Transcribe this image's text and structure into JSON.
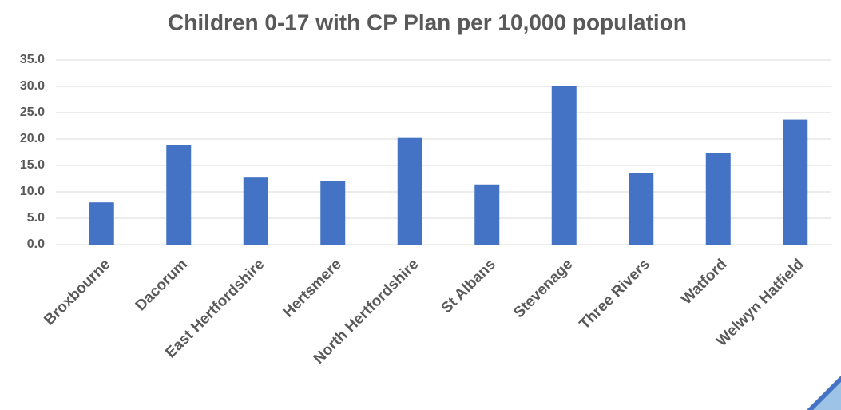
{
  "chart_data": {
    "type": "bar",
    "title": "Children 0-17 with CP Plan per 10,000 population",
    "categories": [
      "Broxbourne",
      "Dacorum",
      "East Hertfordshire",
      "Hertsmere",
      "North Hertfordshire",
      "St Albans",
      "Stevenage",
      "Three Rivers",
      "Watford",
      "Welwyn Hatfield"
    ],
    "values": [
      8.0,
      18.9,
      12.7,
      12.0,
      20.2,
      11.4,
      30.1,
      13.6,
      17.3,
      23.7
    ],
    "color": "#4472c4",
    "ylim": [
      0,
      35
    ],
    "yticks": [
      {
        "value": 0,
        "label": "0.0"
      },
      {
        "value": 5,
        "label": "5.0"
      },
      {
        "value": 10,
        "label": "10.0"
      },
      {
        "value": 15,
        "label": "15.0"
      },
      {
        "value": 20,
        "label": "20.0"
      },
      {
        "value": 25,
        "label": "25.0"
      },
      {
        "value": 30,
        "label": "30.0"
      },
      {
        "value": 35,
        "label": "35.0"
      }
    ],
    "grid": true
  }
}
